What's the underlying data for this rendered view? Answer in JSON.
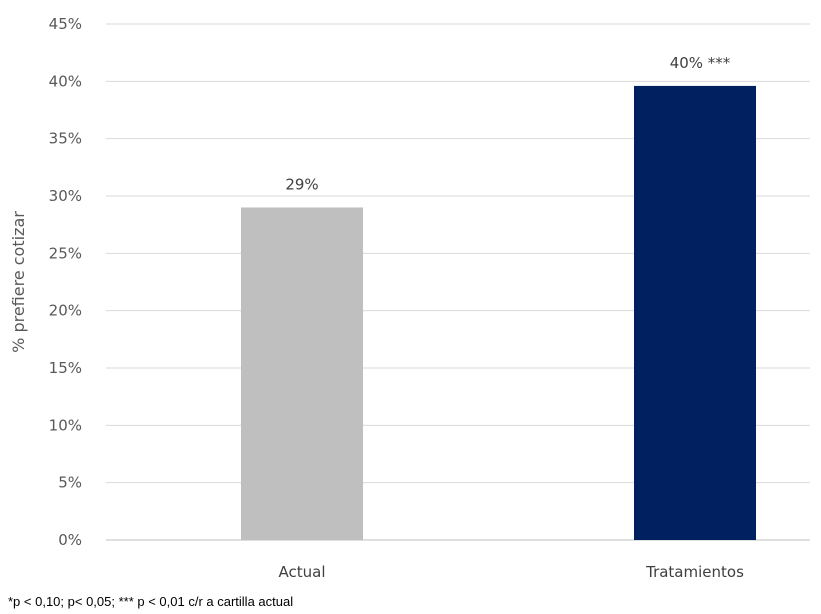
{
  "chart_data": {
    "type": "bar",
    "categories": [
      "Actual",
      "Tratamientos"
    ],
    "values": [
      29,
      39.6
    ],
    "data_labels": [
      "29%",
      "40% ***"
    ],
    "bar_colors": [
      "#bfbfbf",
      "#002060"
    ],
    "ylabel": "% prefiere cotizar",
    "ylim": [
      0,
      45
    ],
    "yticks": [
      0,
      5,
      10,
      15,
      20,
      25,
      30,
      35,
      40,
      45
    ],
    "ytick_labels": [
      "0%",
      "5%",
      "10%",
      "15%",
      "20%",
      "25%",
      "30%",
      "35%",
      "40%",
      "45%"
    ],
    "grid": true,
    "legend": "none"
  },
  "footnote": "*p < 0,10; p< 0,05; *** p < 0,01 c/r a cartilla actual"
}
